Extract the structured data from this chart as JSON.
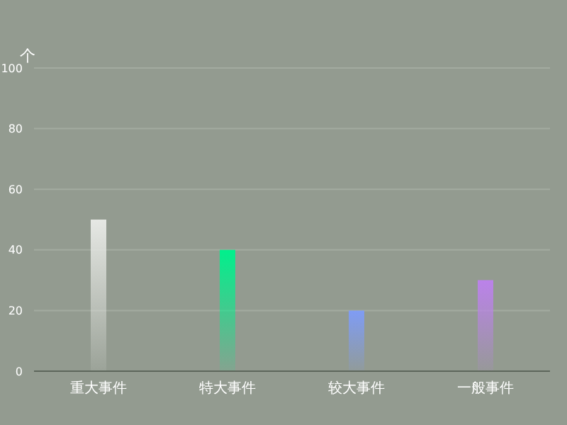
{
  "chart_data": {
    "type": "bar",
    "ylabel": "个",
    "categories": [
      "重大事件",
      "特大事件",
      "较大事件",
      "一般事件"
    ],
    "values": [
      50,
      40,
      20,
      30
    ],
    "colors": [
      "#e6e8e4",
      "#00f08c",
      "#7f9cf5",
      "#bb82ea"
    ],
    "ylim": [
      0,
      100
    ],
    "yticks": [
      0,
      20,
      40,
      60,
      80,
      100
    ],
    "grid": "y"
  }
}
